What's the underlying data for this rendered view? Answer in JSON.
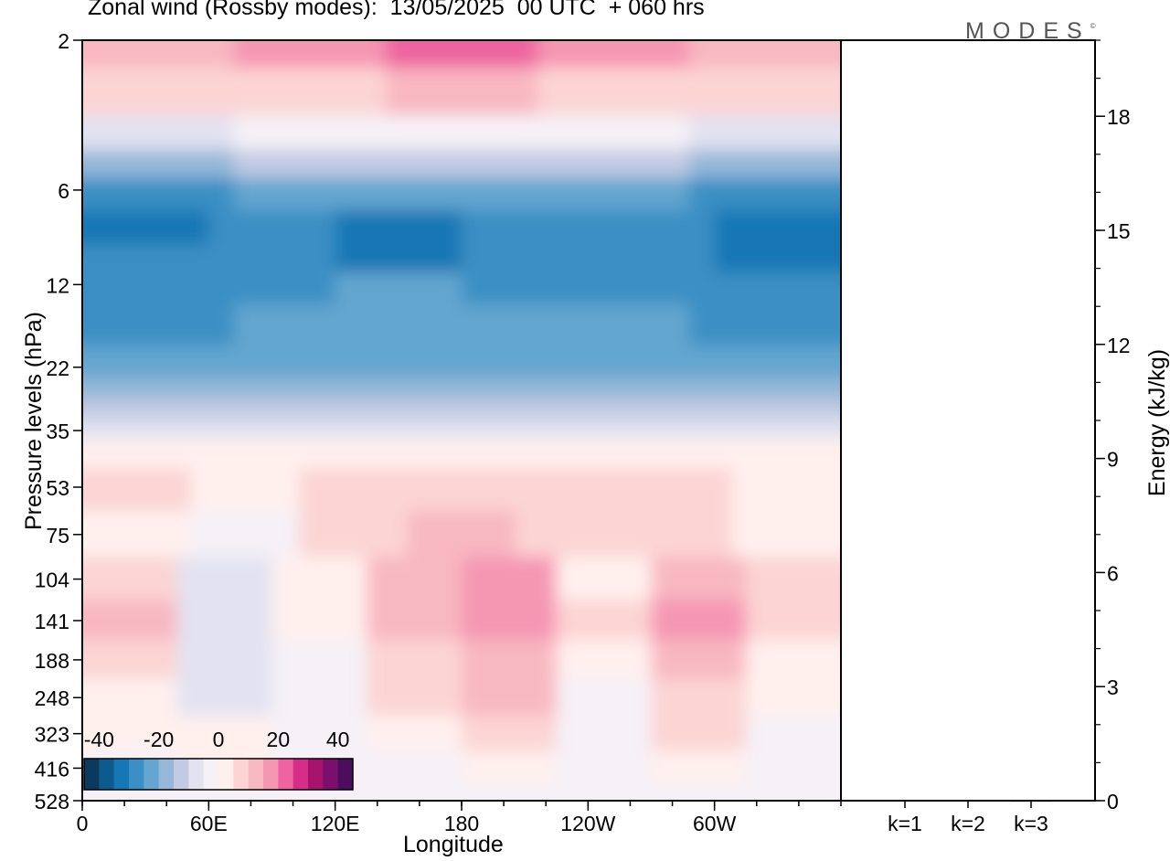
{
  "title": "Zonal wind (Rossby modes):  13/05/2025  00 UTC  + 060 hrs",
  "logo": "MODES",
  "logo_mark": "©",
  "chart_data": [
    {
      "type": "heatmap",
      "title": "Zonal wind (Rossby modes):  13/05/2025  00 UTC  + 060 hrs",
      "xlabel": "Longitude",
      "ylabel": "Pressure levels (hPa)",
      "x_ticks": [
        "0",
        "60E",
        "120E",
        "180",
        "120W",
        "60W"
      ],
      "x_tick_degrees": [
        0,
        60,
        120,
        180,
        240,
        300
      ],
      "x_range": [
        0,
        360
      ],
      "y_ticks": [
        2,
        6,
        12,
        22,
        35,
        53,
        75,
        104,
        141,
        188,
        248,
        323,
        416,
        528
      ],
      "colorbar": {
        "tick_labels": [
          "-40",
          "-20",
          "0",
          "20",
          "40"
        ],
        "colors": [
          "#0b3a5c",
          "#0d5a8e",
          "#1577b4",
          "#3a8fc4",
          "#64a6cf",
          "#95b8d8",
          "#c3cae3",
          "#e2e2f1",
          "#f5f1f7",
          "#fff0ee",
          "#fcd4d4",
          "#f8b8c1",
          "#f596b3",
          "#ee64a0",
          "#d62d88",
          "#a8136e",
          "#7a0f6c",
          "#4d0d5e"
        ],
        "range": [
          -45,
          45
        ]
      },
      "levels": [
        {
          "p": 2,
          "colors": [
            "#f8b8c1",
            "#f596b3",
            "#ee64a0",
            "#f596b3",
            "#f8b8c1"
          ]
        },
        {
          "p": 3,
          "colors": [
            "#fcd4d4",
            "#fcd4d4",
            "#f8b8c1",
            "#fcd4d4",
            "#fcd4d4"
          ]
        },
        {
          "p": 4,
          "colors": [
            "#e2e2f1",
            "#f5f1f7",
            "#f5f1f7",
            "#f5f1f7",
            "#e2e2f1"
          ]
        },
        {
          "p": 5,
          "colors": [
            "#95b8d8",
            "#c3cae3",
            "#c3cae3",
            "#c3cae3",
            "#95b8d8"
          ]
        },
        {
          "p": 6,
          "colors": [
            "#3a8fc4",
            "#64a6cf",
            "#64a6cf",
            "#64a6cf",
            "#3a8fc4"
          ]
        },
        {
          "p": 8,
          "colors": [
            "#1577b4",
            "#3a8fc4",
            "#1577b4",
            "#3a8fc4",
            "#3a8fc4",
            "#1577b4"
          ]
        },
        {
          "p": 10,
          "colors": [
            "#3a8fc4",
            "#3a8fc4",
            "#1577b4",
            "#3a8fc4",
            "#3a8fc4",
            "#1577b4"
          ]
        },
        {
          "p": 12,
          "colors": [
            "#3a8fc4",
            "#3a8fc4",
            "#64a6cf",
            "#3a8fc4",
            "#3a8fc4",
            "#3a8fc4"
          ]
        },
        {
          "p": 16,
          "colors": [
            "#3a8fc4",
            "#64a6cf",
            "#64a6cf",
            "#64a6cf",
            "#3a8fc4"
          ]
        },
        {
          "p": 22,
          "colors": [
            "#64a6cf",
            "#64a6cf",
            "#64a6cf",
            "#64a6cf",
            "#64a6cf"
          ]
        },
        {
          "p": 26,
          "colors": [
            "#95b8d8",
            "#95b8d8",
            "#95b8d8",
            "#95b8d8",
            "#95b8d8"
          ]
        },
        {
          "p": 30,
          "colors": [
            "#c3cae3",
            "#c3cae3",
            "#c3cae3",
            "#c3cae3",
            "#c3cae3"
          ]
        },
        {
          "p": 35,
          "colors": [
            "#e2e2f1",
            "#e2e2f1",
            "#e2e2f1",
            "#e2e2f1",
            "#e2e2f1"
          ]
        },
        {
          "p": 40,
          "colors": [
            "#fff0ee",
            "#fff0ee",
            "#fff0ee",
            "#fff0ee",
            "#fff0ee"
          ]
        },
        {
          "p": 53,
          "colors": [
            "#fcd4d4",
            "#fff0ee",
            "#fcd4d4",
            "#fcd4d4",
            "#fcd4d4",
            "#fcd4d4",
            "#fff0ee"
          ]
        },
        {
          "p": 75,
          "colors": [
            "#fff0ee",
            "#f5f1f7",
            "#fcd4d4",
            "#f8b8c1",
            "#fcd4d4",
            "#fcd4d4",
            "#fff0ee"
          ]
        },
        {
          "p": 104,
          "colors": [
            "#fcd4d4",
            "#e2e2f1",
            "#fff0ee",
            "#f8b8c1",
            "#f596b3",
            "#fff0ee",
            "#f8b8c1",
            "#fcd4d4"
          ]
        },
        {
          "p": 141,
          "colors": [
            "#f8b8c1",
            "#e2e2f1",
            "#fff0ee",
            "#f8b8c1",
            "#f596b3",
            "#fcd4d4",
            "#f596b3",
            "#fcd4d4"
          ]
        },
        {
          "p": 188,
          "colors": [
            "#fcd4d4",
            "#e2e2f1",
            "#f5f1f7",
            "#fcd4d4",
            "#f8b8c1",
            "#fff0ee",
            "#f8b8c1",
            "#fff0ee"
          ]
        },
        {
          "p": 248,
          "colors": [
            "#fff0ee",
            "#e2e2f1",
            "#f5f1f7",
            "#fcd4d4",
            "#f8b8c1",
            "#f5f1f7",
            "#fcd4d4",
            "#fff0ee"
          ]
        },
        {
          "p": 323,
          "colors": [
            "#fff0ee",
            "#fff0ee",
            "#f5f1f7",
            "#fff0ee",
            "#fcd4d4",
            "#f5f1f7",
            "#fcd4d4",
            "#f5f1f7"
          ]
        },
        {
          "p": 416,
          "colors": [
            "#f5f1f7",
            "#fff0ee",
            "#f5f1f7",
            "#f5f1f7",
            "#fff0ee",
            "#f5f1f7",
            "#fff0ee",
            "#f5f1f7"
          ]
        },
        {
          "p": 528,
          "colors": [
            "#f5f1f7",
            "#f5f1f7",
            "#f5f1f7",
            "#f5f1f7",
            "#f5f1f7",
            "#f5f1f7",
            "#f5f1f7",
            "#f5f1f7"
          ]
        }
      ]
    },
    {
      "type": "bar",
      "ylabel": "Energy (kJ/kg)",
      "categories": [
        "k=1",
        "k=2",
        "k=3"
      ],
      "values": [
        0.02,
        0.02,
        0.01
      ],
      "ylim": [
        0,
        20
      ],
      "y_ticks": [
        0,
        3,
        6,
        9,
        12,
        15,
        18
      ]
    }
  ]
}
